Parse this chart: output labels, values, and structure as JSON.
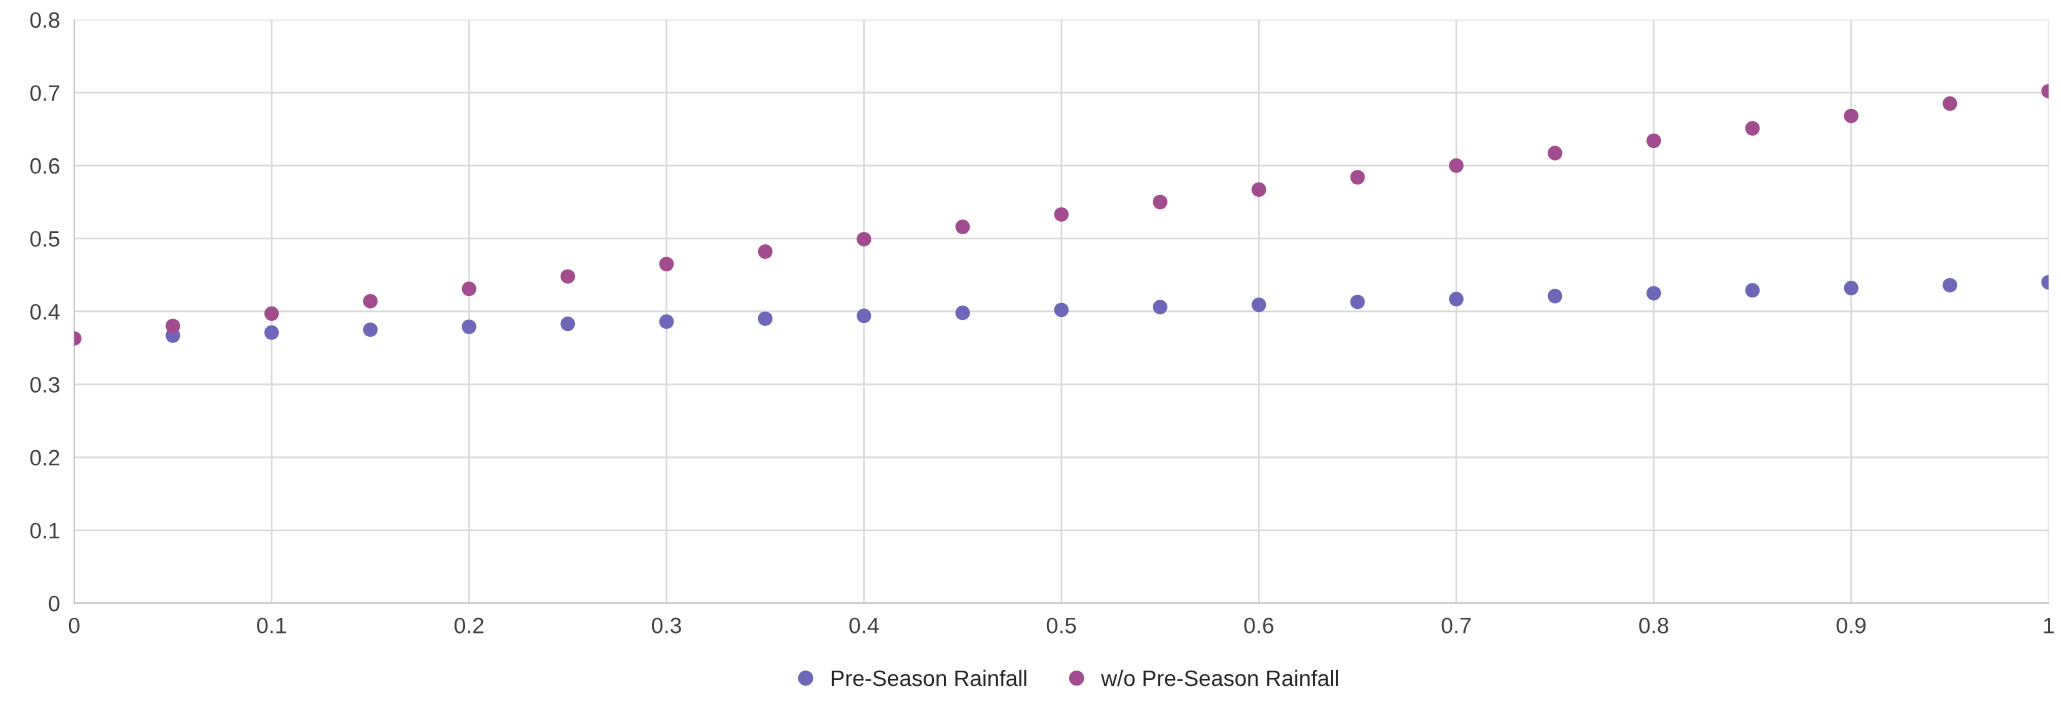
{
  "chart_data": {
    "type": "scatter",
    "x": [
      0,
      0.05,
      0.1,
      0.15,
      0.2,
      0.25,
      0.3,
      0.35,
      0.4,
      0.45,
      0.5,
      0.55,
      0.6,
      0.65,
      0.7,
      0.75,
      0.8,
      0.85,
      0.9,
      0.95,
      1
    ],
    "series": [
      {
        "name": "Pre-Season Rainfall",
        "color": "#6e66b8",
        "values": [
          null,
          0.367,
          0.371,
          0.375,
          0.379,
          0.383,
          0.386,
          0.39,
          0.394,
          0.398,
          0.402,
          0.406,
          0.409,
          0.413,
          0.417,
          0.421,
          0.425,
          0.429,
          0.432,
          0.436,
          0.44
        ]
      },
      {
        "name": "w/o Pre-Season Rainfall",
        "color": "#a34b8f",
        "values": [
          0.363,
          0.38,
          0.397,
          0.414,
          0.431,
          0.448,
          0.465,
          0.482,
          0.499,
          0.516,
          0.533,
          0.55,
          0.567,
          0.584,
          0.6,
          0.617,
          0.634,
          0.651,
          0.668,
          0.685,
          0.702
        ]
      }
    ],
    "xlim": [
      0,
      1
    ],
    "xticks": [
      0,
      0.1,
      0.2,
      0.3,
      0.4,
      0.5,
      0.6,
      0.7,
      0.8,
      0.9,
      1
    ],
    "ylim": [
      0,
      0.8
    ],
    "yticks": [
      0,
      0.1,
      0.2,
      0.3,
      0.4,
      0.5,
      0.6,
      0.7,
      0.8
    ],
    "grid": true,
    "legend": "bottom",
    "marker": "circle"
  }
}
